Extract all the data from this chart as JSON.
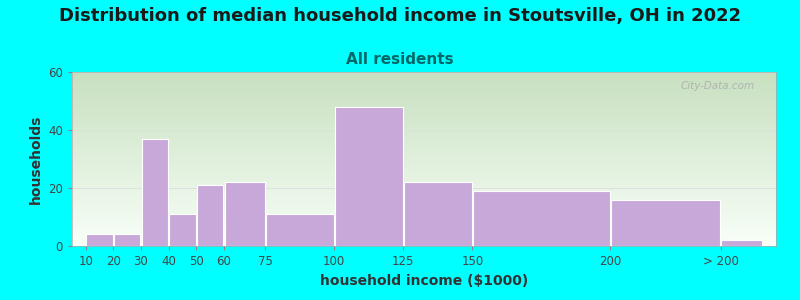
{
  "title": "Distribution of median household income in Stoutsville, OH in 2022",
  "subtitle": "All residents",
  "xlabel": "household income ($1000)",
  "ylabel": "households",
  "bar_labels": [
    "10",
    "20",
    "30",
    "40",
    "50",
    "60",
    "75",
    "100",
    "125",
    "150",
    "200",
    "> 200"
  ],
  "bar_heights": [
    4,
    4,
    37,
    11,
    21,
    22,
    11,
    48,
    22,
    19,
    16,
    2
  ],
  "bar_lefts": [
    10,
    20,
    30,
    40,
    50,
    60,
    75,
    100,
    125,
    150,
    200,
    240
  ],
  "bar_widths": [
    10,
    10,
    10,
    10,
    10,
    15,
    25,
    25,
    25,
    50,
    40,
    15
  ],
  "bar_color": "#C8A8D8",
  "bar_edge_color": "#FFFFFF",
  "ylim": [
    0,
    60
  ],
  "yticks": [
    0,
    20,
    40,
    60
  ],
  "background_color": "#00FFFF",
  "plot_bg_top": "#C8E0C0",
  "plot_bg_bottom": "#F8FFF8",
  "title_fontsize": 13,
  "subtitle_fontsize": 11,
  "title_color": "#1a1a1a",
  "subtitle_color": "#006666",
  "axis_label_fontsize": 10,
  "tick_fontsize": 8.5,
  "watermark_text": "City-Data.com",
  "grid_color": "#DDDDDD",
  "xtick_positions": [
    10,
    20,
    30,
    40,
    50,
    60,
    75,
    100,
    125,
    150,
    200,
    240
  ]
}
